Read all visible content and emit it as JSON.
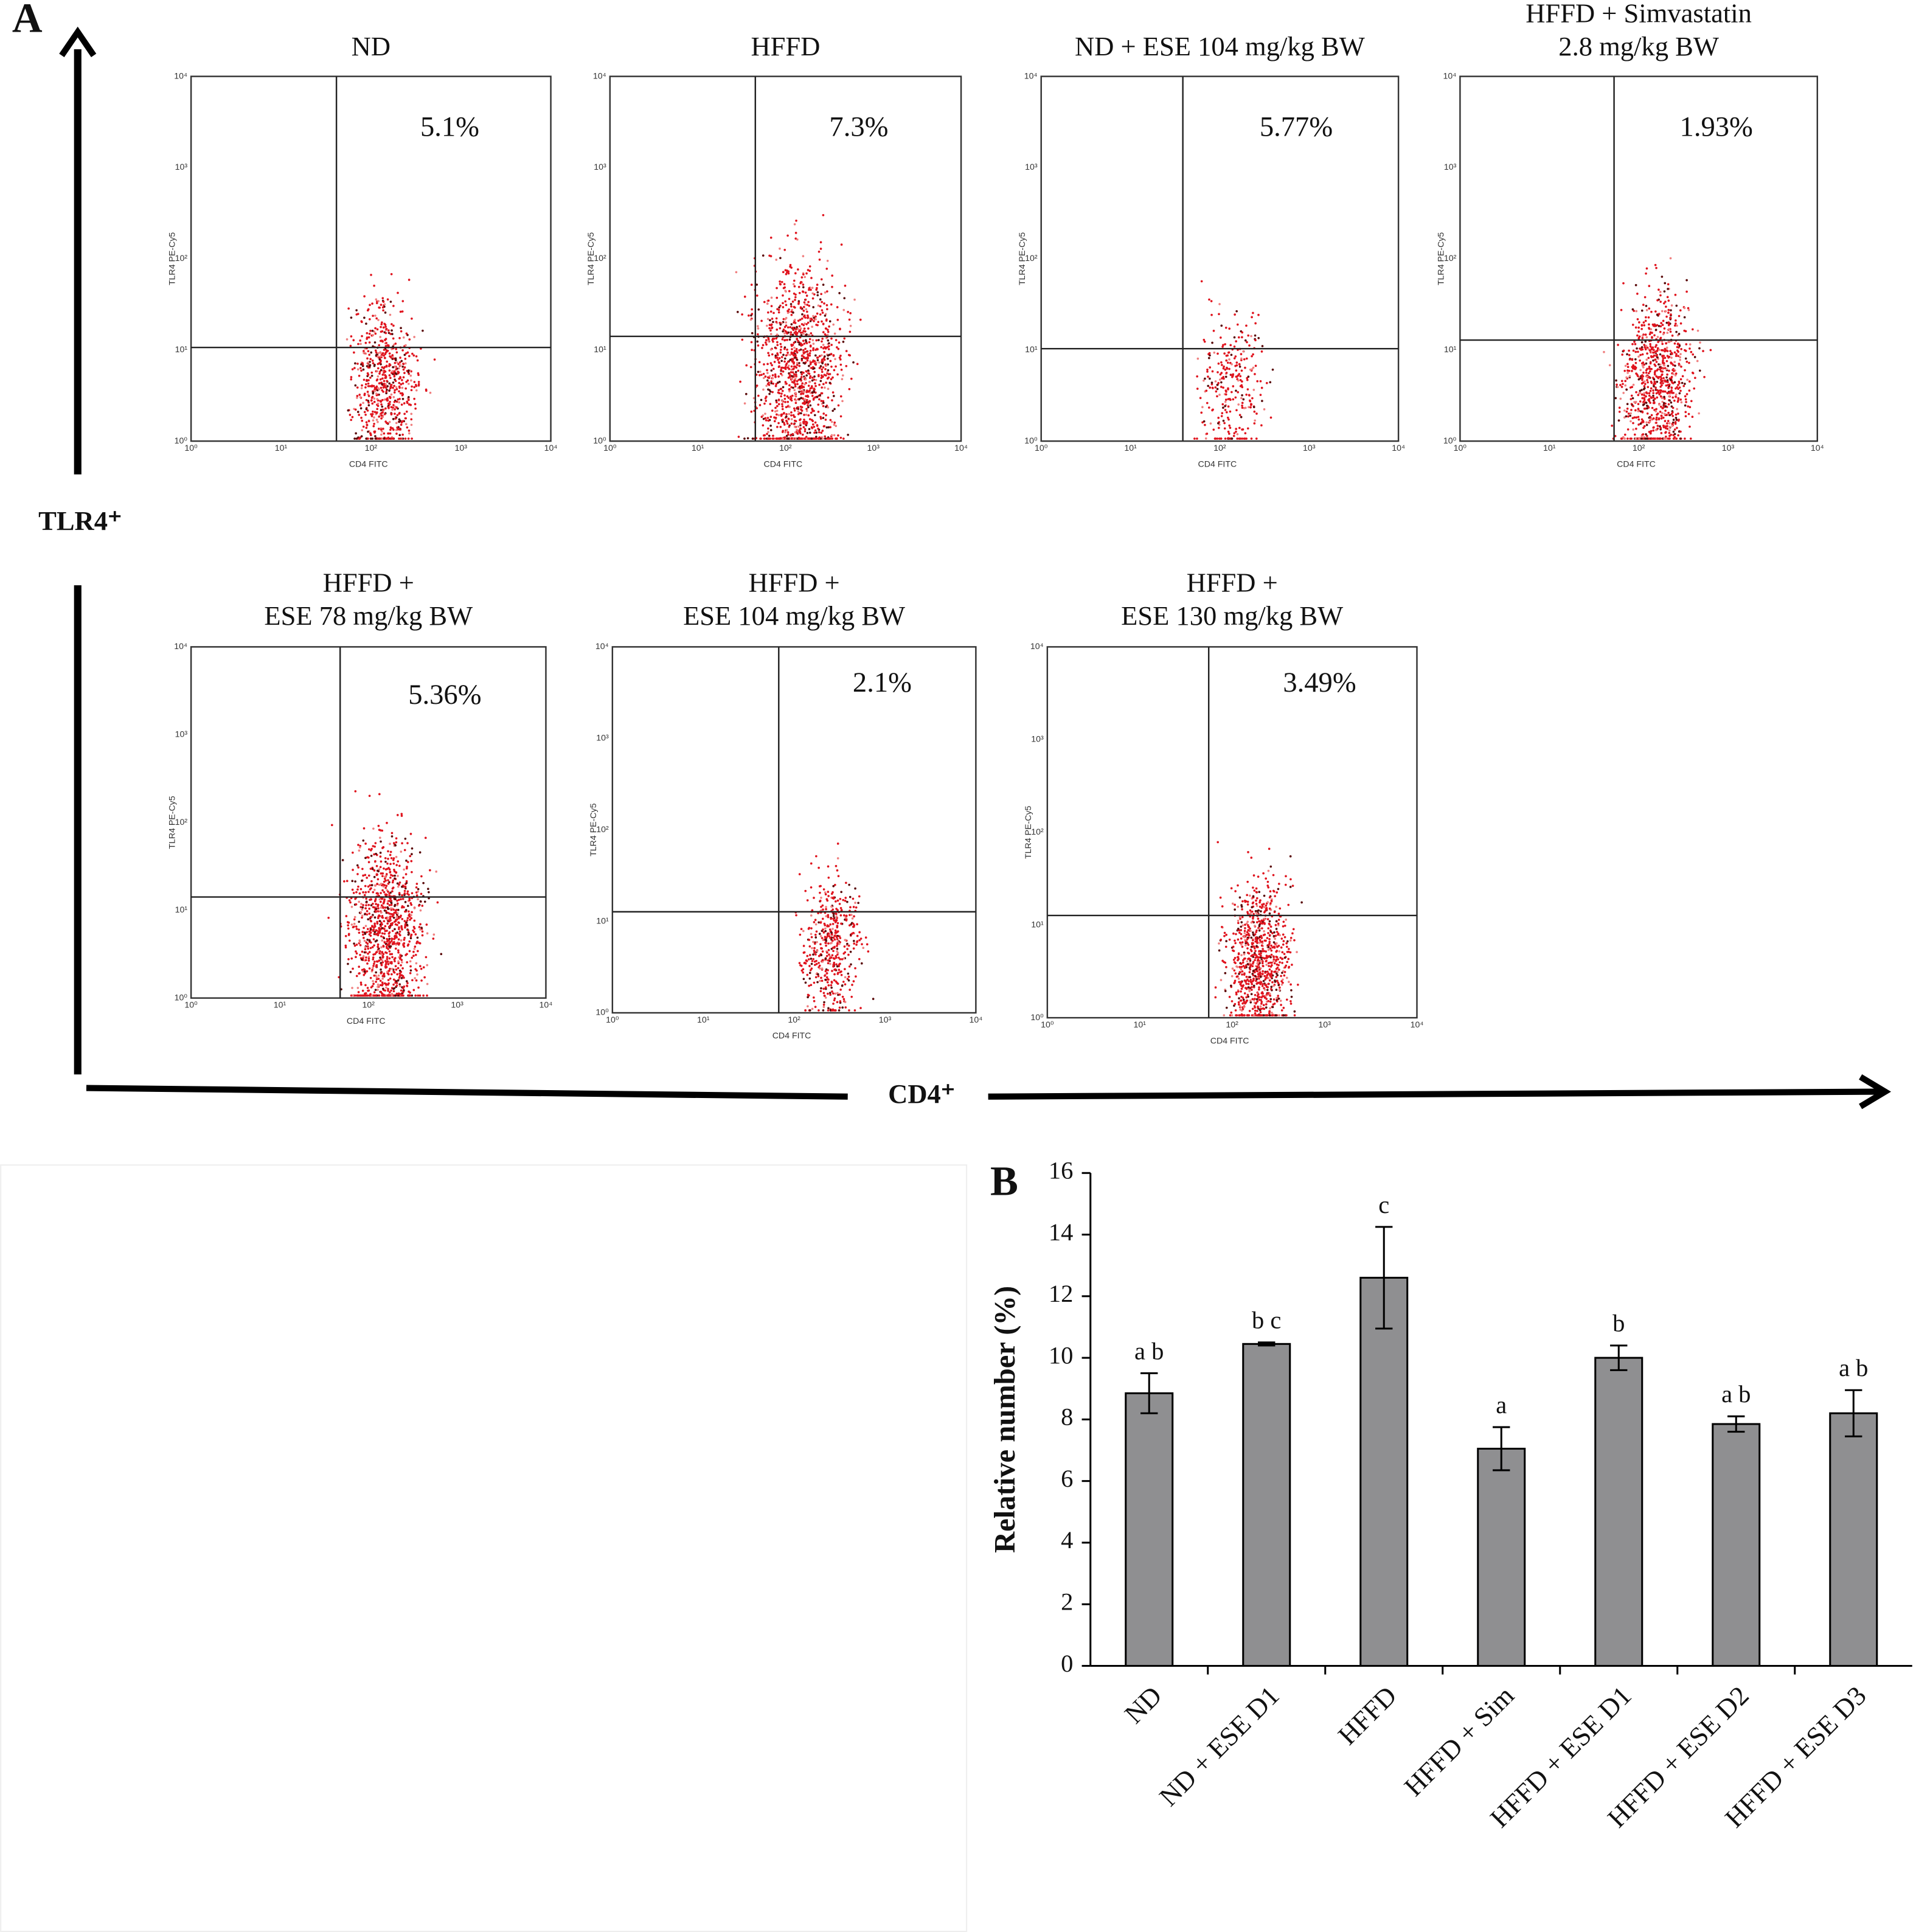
{
  "panel_a": {
    "label": "A",
    "y_axis_label": "TLR4⁺",
    "x_axis_label": "CD4⁺",
    "plot_y_label": "TLR4 PE-Cy5",
    "plot_x_label": "CD4 FITC",
    "plot_ticks": [
      "10⁰",
      "10¹",
      "10²",
      "10³",
      "10⁴"
    ],
    "plots": [
      {
        "title": [
          "ND"
        ],
        "percent": "5.1%"
      },
      {
        "title": [
          "HFFD"
        ],
        "percent": "7.3%"
      },
      {
        "title": [
          "ND + ESE 104 mg/kg BW"
        ],
        "percent": "5.77%"
      },
      {
        "title": [
          "HFFD + Simvastatin",
          "2.8 mg/kg BW"
        ],
        "percent": "1.93%"
      },
      {
        "title": [
          "HFFD +",
          "ESE 78 mg/kg BW"
        ],
        "percent": "5.36%"
      },
      {
        "title": [
          "HFFD +",
          "ESE 104 mg/kg BW"
        ],
        "percent": "2.1%"
      },
      {
        "title": [
          "HFFD +",
          "ESE 130 mg/kg BW"
        ],
        "percent": "3.49%"
      }
    ]
  },
  "chart_data": {
    "type": "bar",
    "panel_label": "B",
    "y_label": "Relative number (%)",
    "categories": [
      "ND",
      "ND + ESE D1",
      "HFFD",
      "HFFD + Sim",
      "HFFD + ESE D1",
      "HFFD + ESE D2",
      "HFFD + ESE D3"
    ],
    "values": [
      8.85,
      10.45,
      12.6,
      7.05,
      10.0,
      7.85,
      8.2
    ],
    "errors": [
      0.65,
      0.05,
      1.65,
      0.7,
      0.4,
      0.25,
      0.75
    ],
    "letters": [
      "a b",
      "b c",
      "c",
      "a",
      "b",
      "a b",
      "a b"
    ],
    "color": "#8f8f91",
    "ylim": [
      0,
      16
    ],
    "yticks": [
      0,
      2,
      4,
      6,
      8,
      10,
      12,
      14,
      16
    ]
  }
}
